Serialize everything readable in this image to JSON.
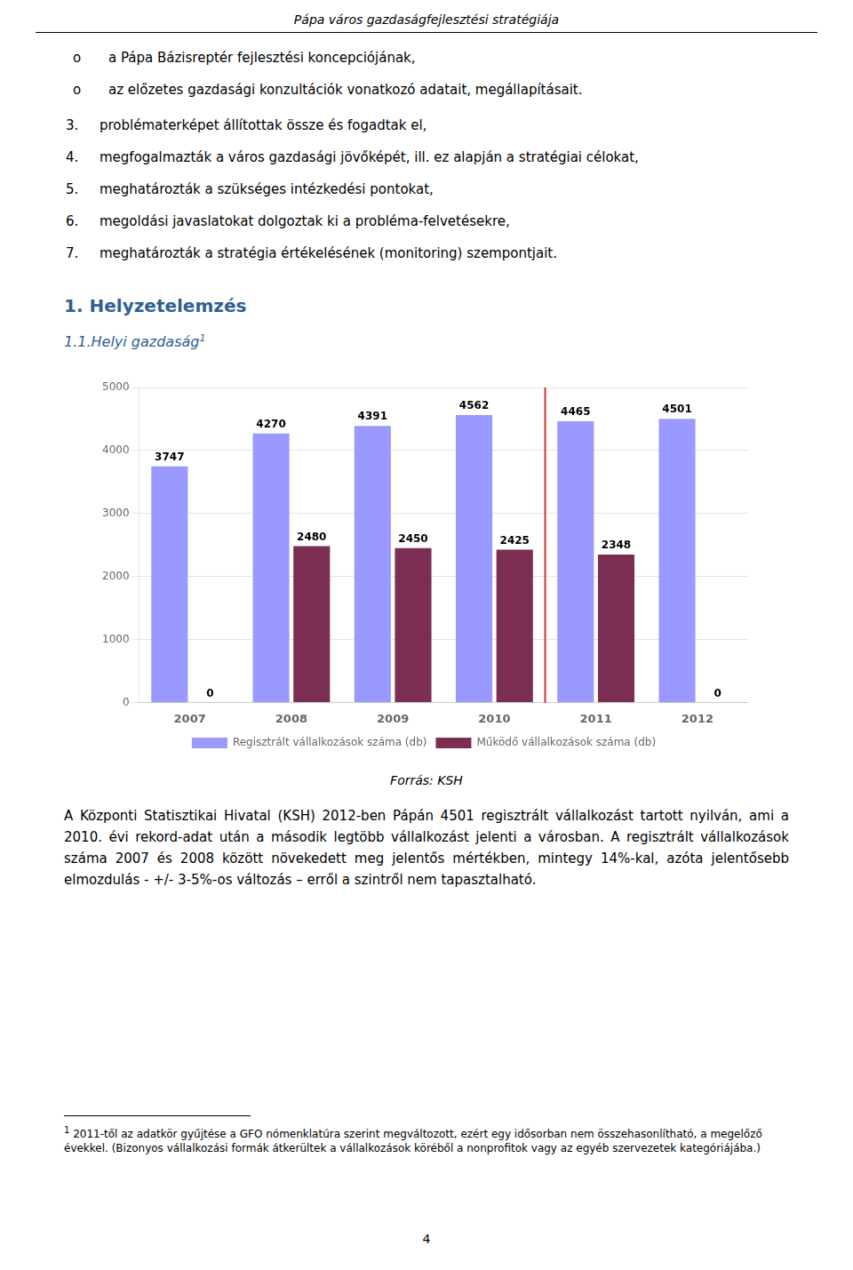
{
  "page": {
    "title": "Pápa város gazdaságfejlesztési stratégiája",
    "bullet_lines": [
      [
        "o",
        "a Pápa Bázisreptér fejlesztési koncepciójának,"
      ],
      [
        "o",
        "az előzetes gazdasági konzultációk vonatkozó adatait, megállapításait."
      ]
    ],
    "numbered_lines": [
      [
        "3.",
        "problématerképet állítottak össze és fogadtak el,"
      ],
      [
        "4.",
        "megfogalmazták a város gazdasági jövőképét, ill. ez alapján a stratégiai célokat,"
      ],
      [
        "5.",
        "meghatározták a szükséges intézkedési pontokat,"
      ],
      [
        "6.",
        "megoldási javaslatokat dolgoztak ki a probléma-felvetésekre,"
      ],
      [
        "7.",
        "meghatározták a stratégia értékelésének (monitoring) szempontjait."
      ]
    ],
    "section_heading": "1. Helyzetelemzés",
    "subsection_heading": "1.1.Helyi gazdaság",
    "subsection_superscript": "1",
    "source_text": "Forrás: KSH",
    "body_text": "A Központi Statisztikai Hivatal (KSH) 2012-ben Pápán 4501 regisztrált vállalkozást tartott nyilván, ami a 2010. évi rekord-adat után a második legtöbb vállalkozást jelenti a városban. A regisztrált vállalkozások száma 2007 és 2008 között növekedett meg jelentős mértékben, mintegy 14%-kal, azóta jelentősebb elmozdulás - +/- 3-5%-os változás – erről a szintről nem tapasztalható.",
    "footnote_superscript": "1",
    "footnote_text": " 2011-től az adatkör gyűjtése a GFO nómenklatúra szerint megváltozott, ezért egy idősorban nem összehasonlítható, a megelőző évekkel. (Bizonyos vállalkozási formák átkerültek a vállalkozások köréből a nonprofitok vagy az egyéb szervezetek kategóriájába.)",
    "page_number": "4"
  },
  "chart_data": {
    "type": "bar",
    "categories": [
      "2007",
      "2008",
      "2009",
      "2010",
      "2011",
      "2012"
    ],
    "series": [
      {
        "name": "Regisztrált vállalkozások száma (db)",
        "color": "#9999FF",
        "values": [
          3747,
          4270,
          4391,
          4562,
          4465,
          4501
        ]
      },
      {
        "name": "Működő vállalkozások száma (db)",
        "color": "#7B2D52",
        "values": [
          0,
          2480,
          2450,
          2425,
          2348,
          0
        ]
      }
    ],
    "ylim": [
      0,
      5000
    ],
    "yticks": [
      0,
      1000,
      2000,
      3000,
      4000,
      5000
    ],
    "grid": true,
    "legend": "bottom",
    "data_labels": true,
    "annotations": [
      {
        "type": "vline",
        "between": [
          "2010",
          "2011"
        ],
        "color": "#CC3333"
      }
    ]
  }
}
